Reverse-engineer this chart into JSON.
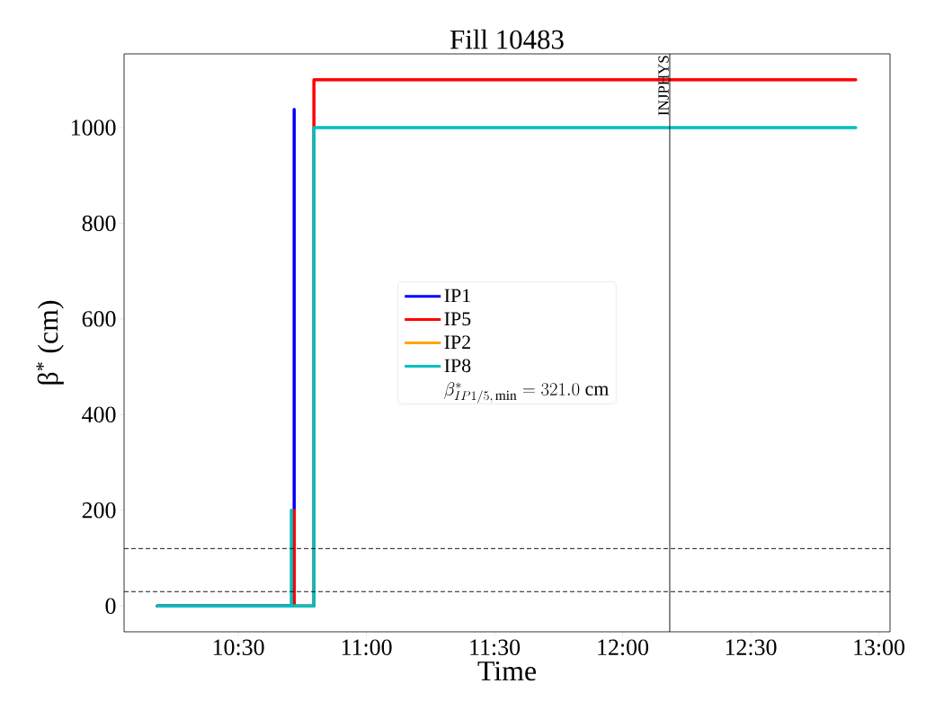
{
  "chart_data": {
    "type": "line",
    "title": "Fill 10483",
    "xlabel": "Time",
    "ylabel": "β$^{*}$ (cm)",
    "xlim": [
      10.054,
      13.044
    ],
    "ylim": [
      -54,
      1154
    ],
    "xticks": [
      {
        "value": 10.5,
        "label": "10:30"
      },
      {
        "value": 11,
        "label": "11:00"
      },
      {
        "value": 11.5,
        "label": "11:30"
      },
      {
        "value": 12,
        "label": "12:00"
      },
      {
        "value": 12.5,
        "label": "12:30"
      },
      {
        "value": 13,
        "label": "13:00"
      }
    ],
    "yticks": [
      0,
      200,
      400,
      600,
      800,
      1000
    ],
    "grid": false,
    "legend": "center",
    "line_style": "solid",
    "marker": "none",
    "series": [
      {
        "name": "IP1",
        "color": "#0000ff",
        "x": [
          10.184,
          10.718,
          10.718
        ],
        "values": [
          0,
          0,
          1038
        ]
      },
      {
        "name": "IP5",
        "color": "#ff0000",
        "x": [
          10.184,
          10.718,
          10.718,
          10.718,
          10.795,
          10.795,
          12.91
        ],
        "values": [
          0,
          0,
          200,
          0,
          0,
          1100,
          1100
        ]
      },
      {
        "name": "IP2",
        "color": "#ffa500"
      },
      {
        "name": "IP8",
        "color": "#00bfbf",
        "x": [
          10.184,
          10.707,
          10.707,
          10.707,
          10.795,
          10.795,
          12.91
        ],
        "values": [
          0,
          0,
          200,
          0,
          0,
          1000,
          1000
        ]
      }
    ],
    "ref_lines": [
      {
        "axis": "y",
        "value": 120,
        "color": "#000000",
        "line_style": "dashed"
      },
      {
        "axis": "y",
        "value": 30,
        "color": "#000000",
        "line_style": "dashed"
      },
      {
        "axis": "x",
        "value": 12.184,
        "label": "INJPHYS",
        "color": "#000000",
        "line_style": "solid"
      }
    ],
    "annotations": [
      "\\beta^{*}_{IP1/5,\\,\\min}=321.0\\ \\mathrm{cm}"
    ]
  }
}
